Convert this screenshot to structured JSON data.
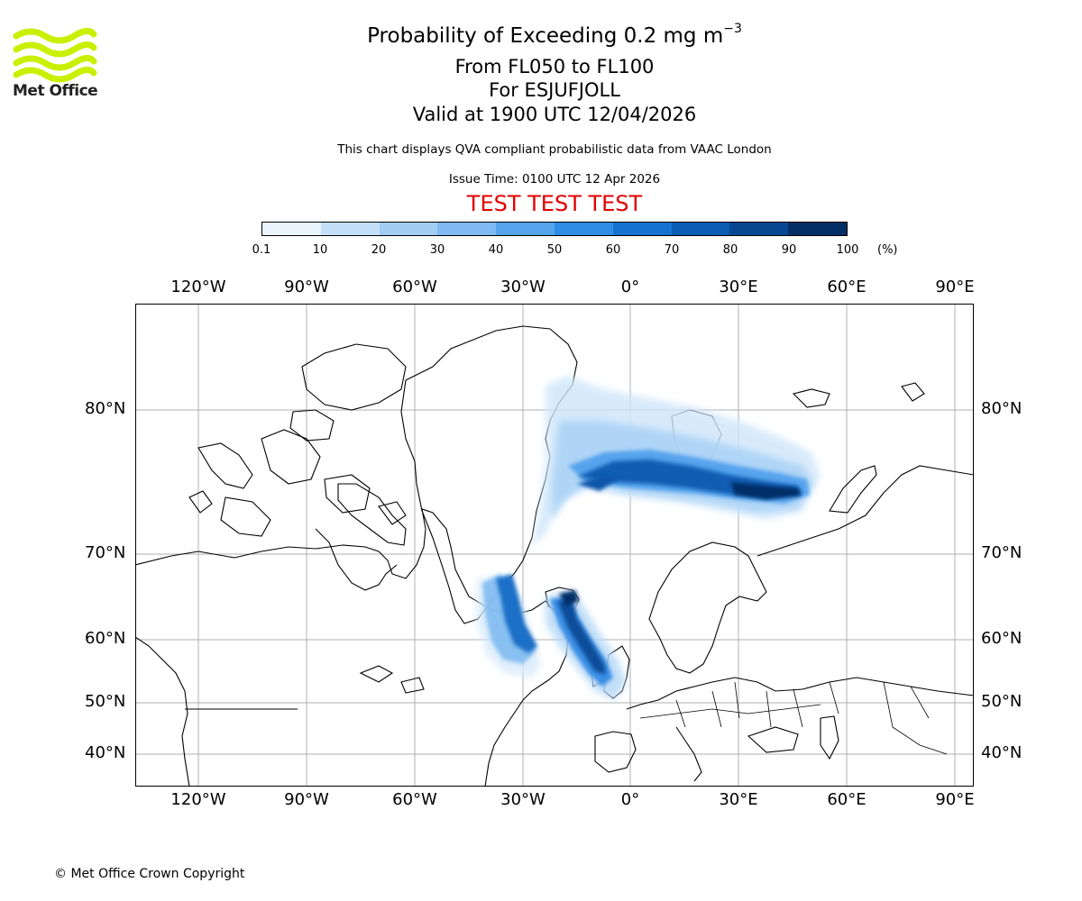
{
  "brand": {
    "name": "Met Office",
    "logo_color": "#c8f000"
  },
  "header": {
    "title": "Probability of Exceeding 0.2 mg m",
    "title_exponent": "−3",
    "levels": "From FL050 to FL100",
    "location": "For ESJUFJOLL",
    "valid": "Valid at 1900 UTC 12/04/2026",
    "description": "This chart displays QVA compliant probabilistic data from VAAC London",
    "issue_time": "Issue Time: 0100 UTC 12 Apr 2026",
    "test_banner": "TEST TEST TEST"
  },
  "colorbar": {
    "unit": "(%)",
    "tick_labels": [
      "0.1",
      "10",
      "20",
      "30",
      "40",
      "50",
      "60",
      "70",
      "80",
      "90",
      "100"
    ],
    "colors": [
      "#eaf4fd",
      "#c4e0f9",
      "#a2cdf5",
      "#7fbaf2",
      "#55a4ee",
      "#2f8de6",
      "#1672d0",
      "#0a5cb3",
      "#074792",
      "#042f66"
    ]
  },
  "map": {
    "lon_labels": [
      "120°W",
      "90°W",
      "60°W",
      "30°W",
      "0°",
      "30°E",
      "60°E",
      "90°E"
    ],
    "lat_labels": [
      "80°N",
      "70°N",
      "60°N",
      "50°N",
      "40°N"
    ],
    "grid_color": "#b0b0b0"
  },
  "footer": {
    "copyright": "© Met Office Crown Copyright"
  }
}
